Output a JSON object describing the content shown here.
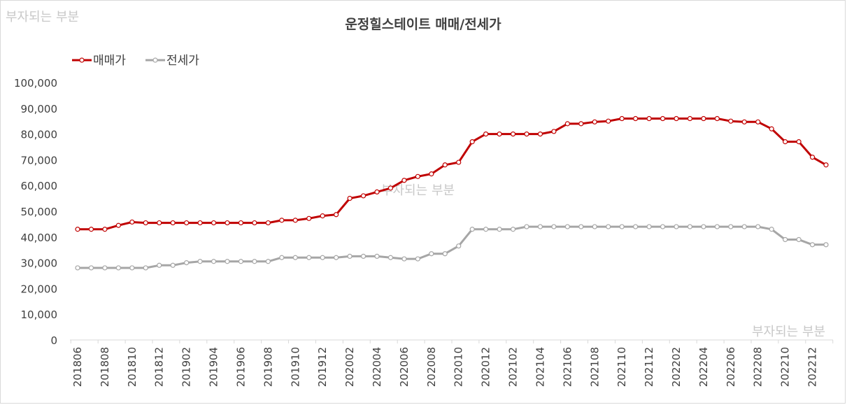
{
  "watermark": "부자되는 부분",
  "chart_data": {
    "type": "line",
    "title": "운정힐스테이트 매매/전세가",
    "xlabel": "",
    "ylabel": "",
    "ylim": [
      0,
      100000
    ],
    "yticks": [
      "0",
      "10,000",
      "20,000",
      "30,000",
      "40,000",
      "50,000",
      "60,000",
      "70,000",
      "80,000",
      "90,000",
      "100,000"
    ],
    "grid": false,
    "legend_position": "top-left",
    "x": [
      "201806",
      "201807",
      "201808",
      "201809",
      "201810",
      "201811",
      "201812",
      "201901",
      "201902",
      "201903",
      "201904",
      "201905",
      "201906",
      "201907",
      "201908",
      "201909",
      "201910",
      "201911",
      "201912",
      "202001",
      "202002",
      "202003",
      "202004",
      "202005",
      "202006",
      "202007",
      "202008",
      "202009",
      "202010",
      "202011",
      "202012",
      "202101",
      "202102",
      "202103",
      "202104",
      "202105",
      "202106",
      "202107",
      "202108",
      "202109",
      "202110",
      "202111",
      "202112",
      "202201",
      "202202",
      "202203",
      "202204",
      "202205",
      "202206",
      "202207",
      "202208",
      "202209",
      "202210",
      "202211",
      "202212",
      "202301"
    ],
    "x_tick_labels": [
      "201806",
      "201808",
      "201810",
      "201812",
      "201902",
      "201904",
      "201906",
      "201908",
      "201910",
      "201912",
      "202002",
      "202004",
      "202006",
      "202008",
      "202010",
      "202012",
      "202102",
      "202104",
      "202106",
      "202108",
      "202110",
      "202112",
      "202202",
      "202204",
      "202206",
      "202208",
      "202210",
      "202212"
    ],
    "series": [
      {
        "name": "매매가",
        "color": "#c00000",
        "values": [
          43000,
          43000,
          43000,
          44500,
          45800,
          45500,
          45500,
          45500,
          45500,
          45500,
          45500,
          45500,
          45500,
          45500,
          45500,
          46500,
          46500,
          47200,
          48200,
          48700,
          55000,
          56000,
          57500,
          59000,
          62000,
          63500,
          64500,
          68000,
          69000,
          77000,
          80000,
          80000,
          80000,
          80000,
          80000,
          81000,
          84000,
          84000,
          84700,
          85000,
          86000,
          86000,
          86000,
          86000,
          86000,
          86000,
          86000,
          86000,
          85000,
          84700,
          84700,
          82000,
          77000,
          77000,
          71000,
          68000
        ]
      },
      {
        "name": "전세가",
        "color": "#a6a6a6",
        "values": [
          28000,
          28000,
          28000,
          28000,
          28000,
          28000,
          29000,
          29000,
          30000,
          30500,
          30500,
          30500,
          30500,
          30500,
          30500,
          32000,
          32000,
          32000,
          32000,
          32000,
          32500,
          32500,
          32500,
          32000,
          31500,
          31500,
          33500,
          33500,
          36500,
          43000,
          43000,
          43000,
          43000,
          44000,
          44000,
          44000,
          44000,
          44000,
          44000,
          44000,
          44000,
          44000,
          44000,
          44000,
          44000,
          44000,
          44000,
          44000,
          44000,
          44000,
          44000,
          43000,
          39000,
          39000,
          37000,
          37000
        ]
      }
    ]
  }
}
